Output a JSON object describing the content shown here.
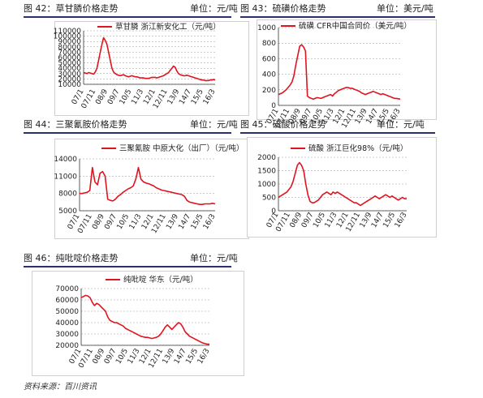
{
  "panels": [
    {
      "caption": "图 42：草甘膦价格走势",
      "unit": "单位：元/吨"
    },
    {
      "caption": "图 43：硫磺价格走势",
      "unit": "单位：美元/吨"
    },
    {
      "caption": "图 44：三聚氰胺价格走势",
      "unit": "单位：元/吨"
    },
    {
      "caption": "图 45：硫酸价格走势",
      "unit": "单位：元/吨"
    },
    {
      "caption": "图 46：纯吡啶价格走势",
      "unit": "单位：元/吨"
    }
  ],
  "source": "资料来源：百川资讯",
  "colors": {
    "line": "#e0141e",
    "rule": "#2a2f6e",
    "grid": "#999999"
  },
  "chart_data": [
    {
      "type": "line",
      "series": [
        {
          "name": "草甘膦 浙江新安化工（元/吨）",
          "values": [
            32000,
            31000,
            30000,
            32000,
            31000,
            30000,
            29000,
            33000,
            40000,
            55000,
            70000,
            85000,
            97000,
            92000,
            85000,
            70000,
            55000,
            40000,
            33000,
            30000,
            28000,
            27000,
            26000,
            27000,
            28000,
            26000,
            25000,
            24000,
            25000,
            26000,
            25000,
            24000,
            24000,
            23000,
            22000,
            22000,
            22000,
            21000,
            21000,
            21000,
            22000,
            23000,
            23000,
            23000,
            22000,
            23000,
            24000,
            25000,
            26000,
            28000,
            30000,
            32000,
            36000,
            40000,
            44000,
            42000,
            35000,
            30000,
            28000,
            27000,
            26000,
            26000,
            27000,
            26000,
            25000,
            24000,
            23000,
            22000,
            21000,
            20000,
            19000,
            18000,
            18000,
            17000,
            17000,
            17000,
            18000,
            18000,
            19000,
            18000
          ]
        }
      ],
      "x_labels": [
        "07/1",
        "07/11",
        "08/9",
        "09/7",
        "10/5",
        "11/3",
        "12/1",
        "12/11",
        "13/9",
        "14/7",
        "15/5",
        "16/3"
      ],
      "y_ticks": [
        10000,
        20000,
        30000,
        40000,
        50000,
        60000,
        70000,
        80000,
        90000,
        100000,
        110000
      ],
      "ylim": [
        10000,
        110000
      ]
    },
    {
      "type": "line",
      "series": [
        {
          "name": "硫磺 CFR中国合同价（美元/吨）",
          "values": [
            140,
            150,
            160,
            180,
            200,
            230,
            260,
            300,
            380,
            520,
            640,
            760,
            780,
            750,
            700,
            120,
            100,
            90,
            80,
            90,
            100,
            95,
            90,
            100,
            110,
            120,
            130,
            140,
            120,
            150,
            170,
            190,
            200,
            210,
            220,
            230,
            230,
            220,
            220,
            210,
            200,
            190,
            180,
            160,
            150,
            140,
            150,
            160,
            170,
            180,
            170,
            160,
            150,
            140,
            150,
            140,
            130,
            120,
            110,
            100,
            90,
            90,
            85,
            80
          ]
        }
      ],
      "x_labels": [
        "07/1",
        "07/11",
        "08/9",
        "09/7",
        "10/5",
        "11/3",
        "12/1",
        "12/11",
        "13/9",
        "14/7",
        "15/5",
        "16/3"
      ],
      "y_ticks": [
        0,
        200,
        400,
        600,
        800,
        1000
      ],
      "ylim": [
        0,
        1000
      ]
    },
    {
      "type": "line",
      "series": [
        {
          "name": "三聚氰胺 中原大化（出厂）（元/吨）",
          "values": [
            8000,
            8000,
            8100,
            8200,
            8500,
            12500,
            10000,
            9500,
            11500,
            11800,
            11000,
            7000,
            6800,
            6700,
            7000,
            7500,
            7800,
            8200,
            8500,
            8800,
            9000,
            9300,
            10500,
            12500,
            10500,
            10000,
            9800,
            9700,
            9500,
            9300,
            9000,
            8800,
            8600,
            8500,
            8400,
            8300,
            8200,
            8100,
            8000,
            7900,
            7800,
            7500,
            6800,
            6500,
            6400,
            6300,
            6200,
            6100,
            6100,
            6200,
            6200,
            6200,
            6300,
            6200
          ]
        }
      ],
      "x_labels": [
        "07/1",
        "07/11",
        "08/9",
        "09/7",
        "10/5",
        "11/3",
        "12/1",
        "12/11",
        "13/9",
        "14/7",
        "15/5",
        "16/3"
      ],
      "y_ticks": [
        5000,
        8000,
        11000,
        14000
      ],
      "ylim": [
        5000,
        14000
      ]
    },
    {
      "type": "line",
      "series": [
        {
          "name": "硫酸 浙江巨化98%（元/吨）",
          "values": [
            500,
            550,
            600,
            650,
            700,
            800,
            900,
            1100,
            1400,
            1700,
            1800,
            1700,
            1500,
            1000,
            600,
            350,
            300,
            300,
            350,
            400,
            500,
            600,
            650,
            700,
            650,
            600,
            700,
            650,
            700,
            650,
            600,
            550,
            500,
            450,
            400,
            350,
            300,
            300,
            250,
            200,
            250,
            300,
            350,
            400,
            450,
            500,
            550,
            500,
            450,
            500,
            550,
            600,
            550,
            500,
            550,
            500,
            450,
            400,
            450,
            500,
            450,
            450
          ]
        }
      ],
      "x_labels": [
        "07/1",
        "07/11",
        "08/9",
        "09/7",
        "10/5",
        "11/3",
        "12/1",
        "12/11",
        "13/9",
        "14/7",
        "15/5",
        "16/3"
      ],
      "y_ticks": [
        0,
        500,
        1000,
        1500,
        2000
      ],
      "ylim": [
        0,
        2000
      ]
    },
    {
      "type": "line",
      "series": [
        {
          "name": "纯吡啶 华东（元/吨）",
          "values": [
            62000,
            63000,
            64000,
            63500,
            62000,
            58000,
            55000,
            57000,
            56000,
            54000,
            52000,
            50000,
            45000,
            42000,
            41000,
            40000,
            40000,
            39000,
            38000,
            37000,
            35000,
            34000,
            33000,
            32000,
            31000,
            30000,
            29000,
            28000,
            27500,
            27000,
            27000,
            26500,
            26000,
            26500,
            27000,
            28000,
            30000,
            33000,
            36000,
            38000,
            36000,
            34000,
            36000,
            38000,
            40000,
            39000,
            36000,
            32000,
            30000,
            28000,
            27000,
            26000,
            25000,
            24000,
            23000,
            22000,
            21500,
            21000,
            21000
          ]
        }
      ],
      "x_labels": [
        "07/1",
        "07/11",
        "08/9",
        "09/7",
        "10/5",
        "11/3",
        "12/1",
        "12/11",
        "13/9",
        "14/7",
        "15/5",
        "16/3"
      ],
      "y_ticks": [
        20000,
        30000,
        40000,
        50000,
        60000,
        70000
      ],
      "ylim": [
        20000,
        70000
      ]
    }
  ]
}
